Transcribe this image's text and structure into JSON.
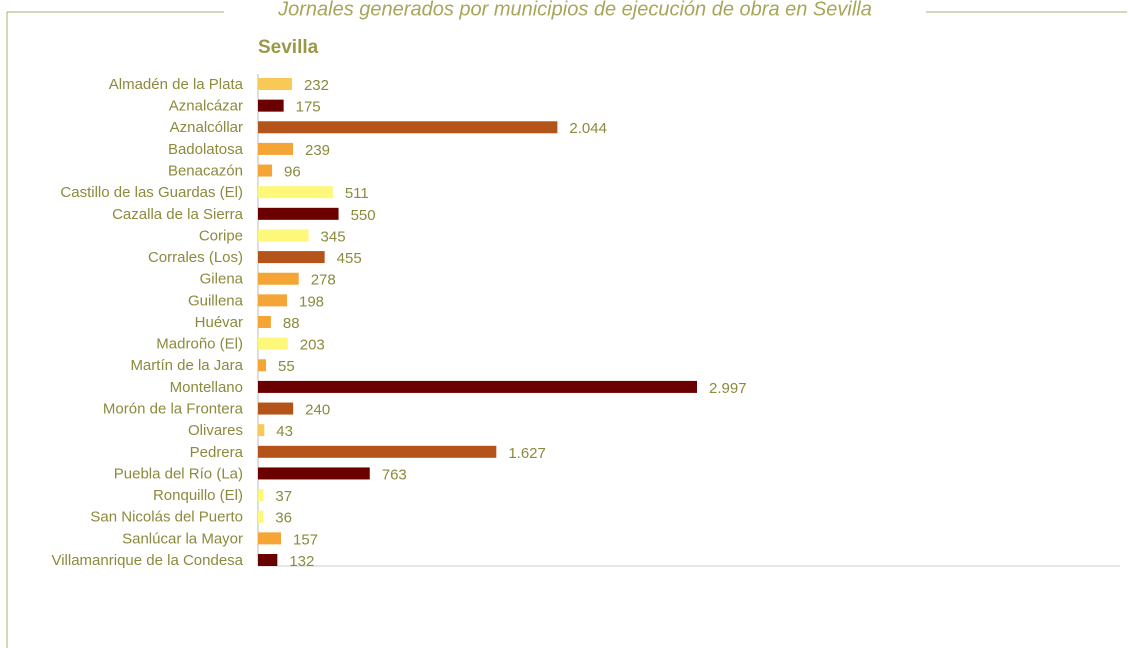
{
  "chart_data": {
    "type": "bar",
    "orientation": "horizontal",
    "title": "Jornales generados por municipios de ejecución de obra en Sevilla",
    "subtitle": "Sevilla",
    "categories": [
      "Almadén de la Plata",
      "Aznalcázar",
      "Aznalcóllar",
      "Badolatosa",
      "Benacazón",
      "Castillo de las Guardas (El)",
      "Cazalla de la Sierra",
      "Coripe",
      "Corrales (Los)",
      "Gilena",
      "Guillena",
      "Huévar",
      "Madroño (El)",
      "Martín de la Jara",
      "Montellano",
      "Morón de la Frontera",
      "Olivares",
      "Pedrera",
      "Puebla del Río (La)",
      "Ronquillo (El)",
      "San Nicolás del Puerto",
      "Sanlúcar la Mayor",
      "Villamanrique de la Condesa"
    ],
    "values": [
      232,
      175,
      2044,
      239,
      96,
      511,
      550,
      345,
      455,
      278,
      198,
      88,
      203,
      55,
      2997,
      240,
      43,
      1627,
      763,
      37,
      36,
      157,
      132
    ],
    "value_labels": [
      "232",
      "175",
      "2.044",
      "239",
      "96",
      "511",
      "550",
      "345",
      "455",
      "278",
      "198",
      "88",
      "203",
      "55",
      "2.997",
      "240",
      "43",
      "1.627",
      "763",
      "37",
      "36",
      "157",
      "132"
    ],
    "colors": [
      "#f9c955",
      "#6b0000",
      "#b5541a",
      "#f4a535",
      "#f4a535",
      "#fdf77a",
      "#6b0000",
      "#fdf77a",
      "#b5541a",
      "#f4a535",
      "#f4a535",
      "#f4a535",
      "#fdf77a",
      "#f4a535",
      "#6b0000",
      "#b5541a",
      "#f9c955",
      "#b5541a",
      "#6b0000",
      "#fdf77a",
      "#fdf77a",
      "#f4a535",
      "#6b0000"
    ]
  }
}
